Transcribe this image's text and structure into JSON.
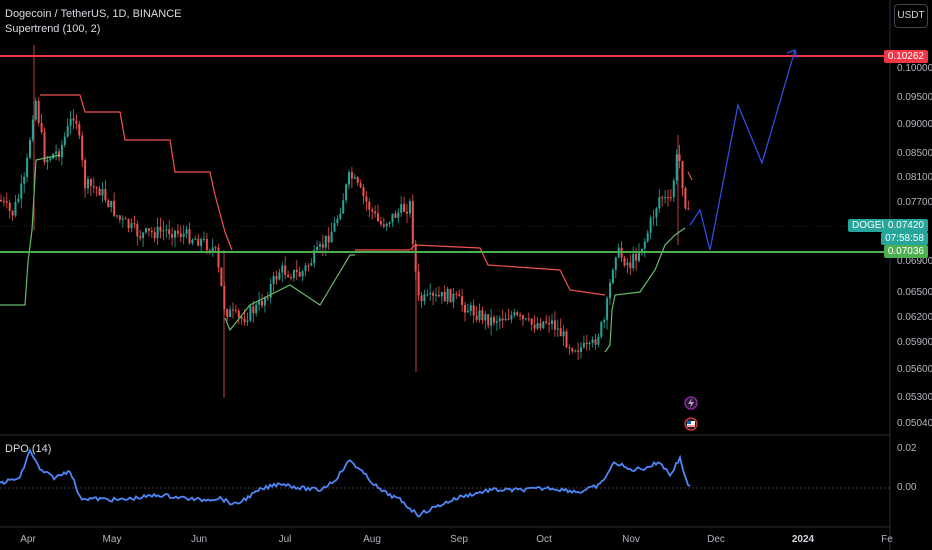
{
  "header": {
    "title": "Dogecoin / TetherUS, 1D, BINANCE",
    "indicator": "Supertrend (100, 2)",
    "currency_button": "USDT"
  },
  "price_axis": {
    "ticks": [
      "0.10000",
      "0.09500",
      "0.09000",
      "0.08500",
      "0.08100",
      "0.07700",
      "0.06900",
      "0.06500",
      "0.06200",
      "0.05900",
      "0.05600",
      "0.05300",
      "0.05040"
    ],
    "resistance_label": "0.10262",
    "support_label": "0.07036",
    "symbol_label": "DOGEUSDT",
    "current_price": "0.07420",
    "countdown": "07:58:58"
  },
  "dpo": {
    "label": "DPO (14)",
    "ticks": [
      "0.02",
      "0.00"
    ]
  },
  "time_axis": [
    "Apr",
    "May",
    "Jun",
    "Jul",
    "Aug",
    "Sep",
    "Oct",
    "Nov",
    "Dec",
    "2024",
    "Fe"
  ],
  "colors": {
    "resistance": "#f23645",
    "support": "#4caf50",
    "up_candle": "#26a69a",
    "down_candle": "#ef5350",
    "supertrend_up": "#66bb6a",
    "supertrend_down": "#ef5350",
    "projection": "#2f4de0",
    "dpo_line": "#4f86f7"
  }
}
